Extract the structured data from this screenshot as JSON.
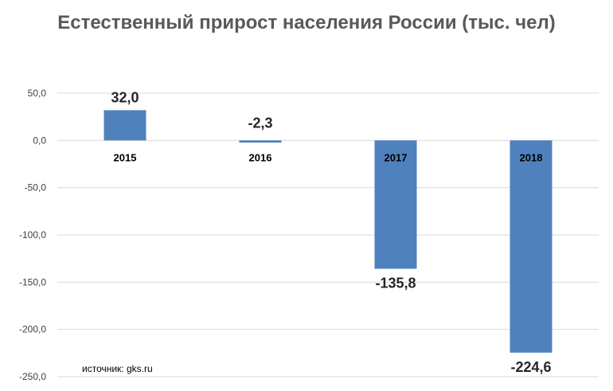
{
  "chart_data": {
    "type": "bar",
    "title": "Естественный прирост населения России (тыс. чел)",
    "categories": [
      "2015",
      "2016",
      "2017",
      "2018"
    ],
    "values": [
      32.0,
      -2.3,
      -135.8,
      -224.6
    ],
    "data_labels": [
      "32,0",
      "-2,3",
      "-135,8",
      "-224,6"
    ],
    "ylim": [
      -250,
      50
    ],
    "y_ticks": [
      50,
      0,
      -50,
      -100,
      -150,
      -200,
      -250
    ],
    "y_tick_labels": [
      "50,0",
      "0,0",
      "-50,0",
      "-100,0",
      "-150,0",
      "-200,0",
      "-250,0"
    ],
    "xlabel": "",
    "ylabel": "",
    "grid": true,
    "bar_color": "#4F81BD",
    "source": "источник: gks.ru"
  }
}
